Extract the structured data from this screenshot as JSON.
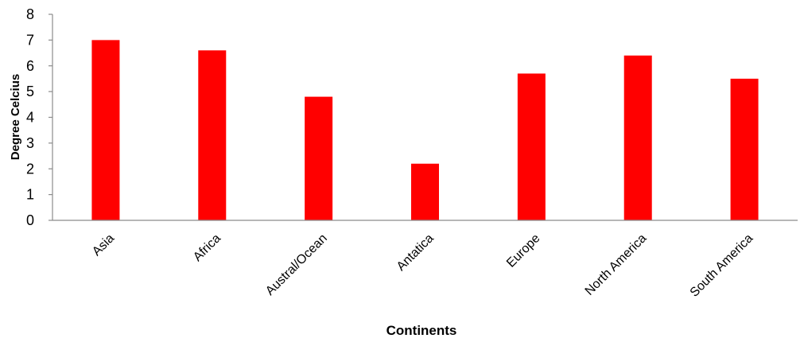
{
  "chart_data": {
    "type": "bar",
    "title": "",
    "xlabel": "Continents",
    "ylabel": "Degree Celcius",
    "categories": [
      "Asia",
      "Africa",
      "Austral/Ocean",
      "Antatica",
      "Europe",
      "North America",
      "South America"
    ],
    "values": [
      7.0,
      6.6,
      4.8,
      2.2,
      5.7,
      6.4,
      5.5
    ],
    "ylim": [
      0,
      8
    ],
    "yticks": [
      "0",
      "1",
      "2",
      "3",
      "4",
      "5",
      "6",
      "7",
      "8"
    ],
    "grid": false,
    "legend": "none",
    "bar_color": "#ff0000",
    "axis_color": "#8c8c8c"
  }
}
